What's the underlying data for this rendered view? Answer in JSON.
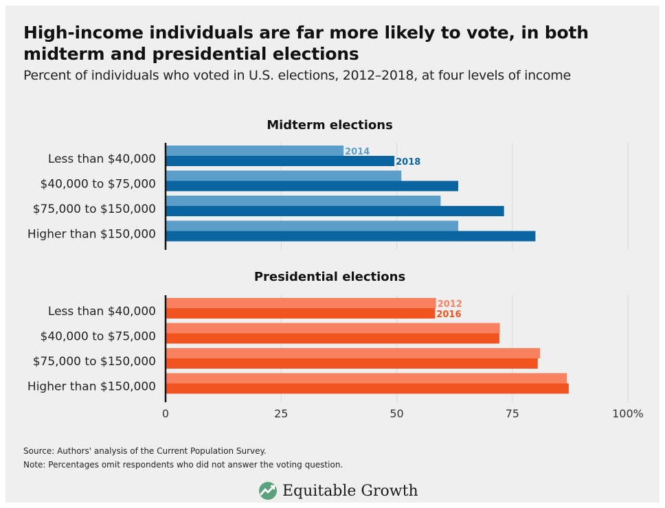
{
  "header": {
    "title": "High-income individuals are far more likely to vote, in both midterm and presidential elections",
    "subtitle": "Percent of individuals who voted in U.S. elections, 2012–2018, at four levels of income"
  },
  "footer": {
    "source": "Source: Authors' analysis of the Current Population Survey.",
    "note": "Note: Percentages omit respondents who did not answer the voting question.",
    "brand": "Equitable Growth"
  },
  "colors": {
    "midterm_2014": "#5b9ec9",
    "midterm_2018": "#0a64a0",
    "pres_2012": "#f88260",
    "pres_2016": "#f1541f"
  },
  "chart_data": {
    "type": "bar",
    "orientation": "horizontal",
    "xlim": [
      0,
      100
    ],
    "x_ticks": [
      "0",
      "25",
      "50",
      "75",
      "100%"
    ],
    "grid": "vertical",
    "panels": [
      {
        "title": "Midterm elections",
        "categories": [
          "Less than $40,000",
          "$40,000 to $75,000",
          "$75,000 to $150,000",
          "Higher than $150,000"
        ],
        "series": [
          {
            "name": "2014",
            "values": [
              38.5,
              51,
              59.5,
              63.3
            ],
            "color": "#5b9ec9"
          },
          {
            "name": "2018",
            "values": [
              49.5,
              63.3,
              73.2,
              80
            ]
          }
        ]
      },
      {
        "title": "Presidential elections",
        "categories": [
          "Less than $40,000",
          "$40,000 to $75,000",
          "$75,000 to $150,000",
          "Higher than $150,000"
        ],
        "series": [
          {
            "name": "2012",
            "values": [
              58.5,
              72.3,
              81,
              86.8
            ]
          },
          {
            "name": "2016",
            "values": [
              58.3,
              72.2,
              80.5,
              87.2
            ]
          }
        ]
      }
    ]
  }
}
